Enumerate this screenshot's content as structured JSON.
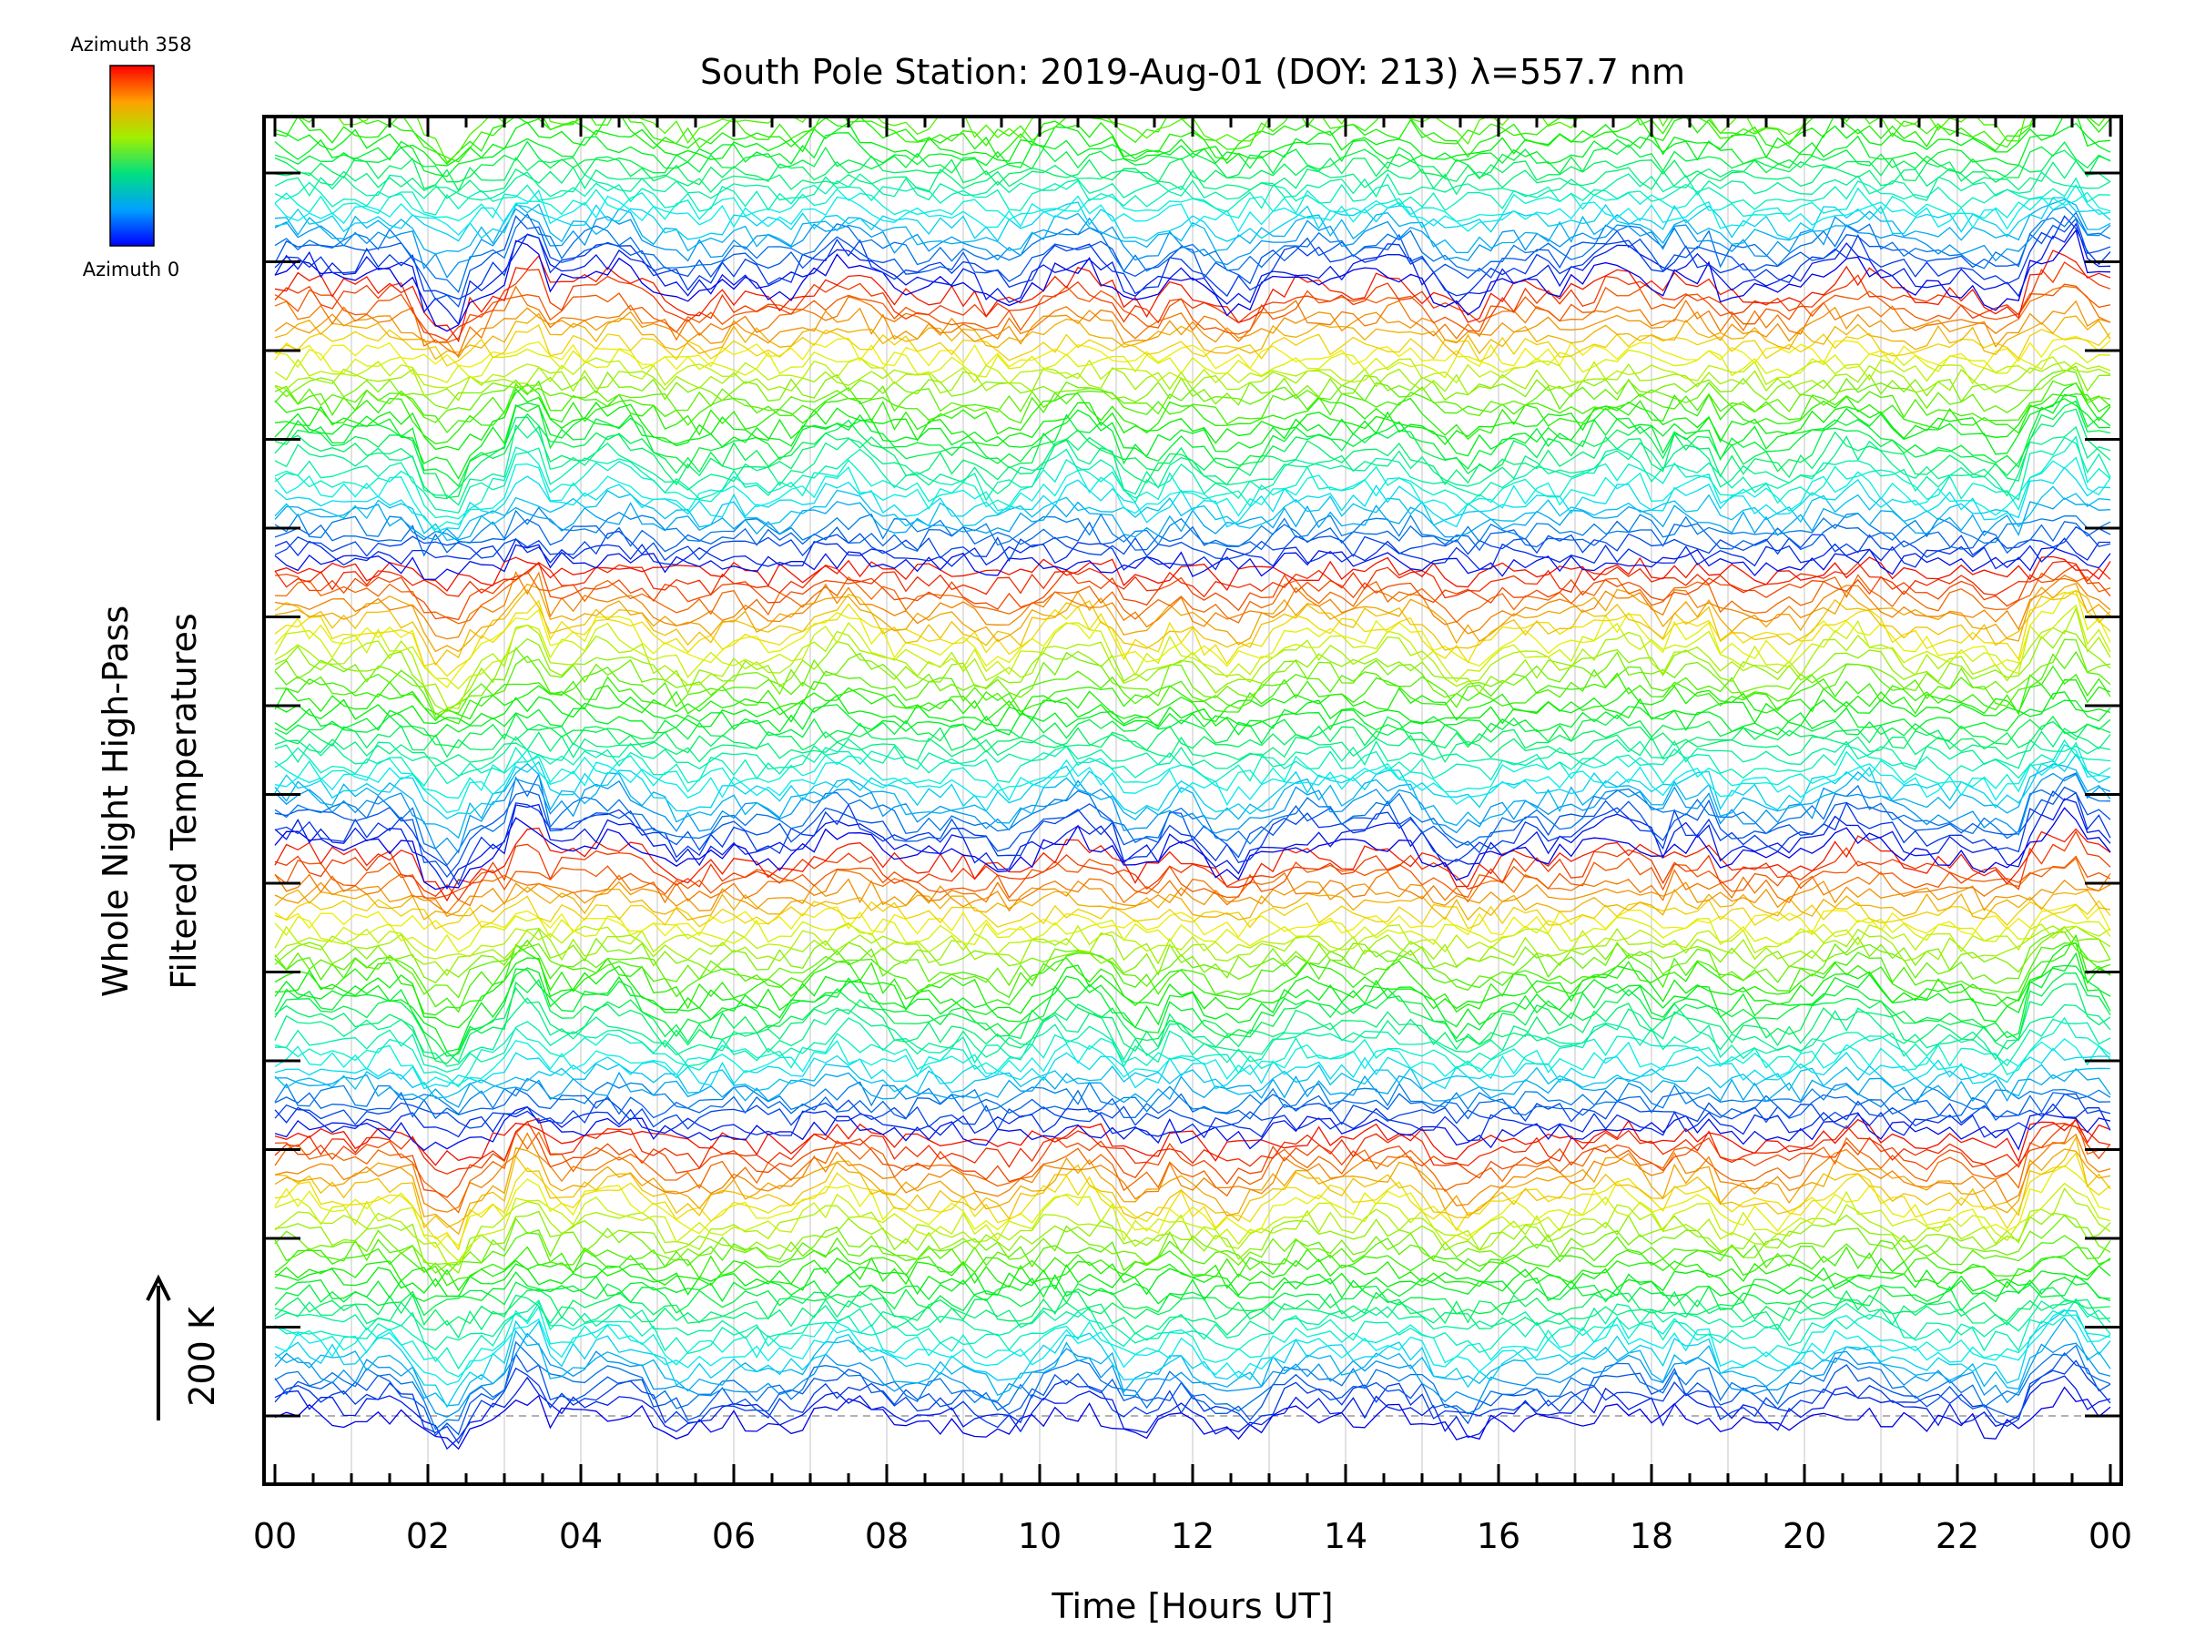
{
  "chart_data": {
    "type": "line",
    "title": "South Pole Station: 2019-Aug-01 (DOY: 213) λ=557.7 nm",
    "xlabel": "Time [Hours UT]",
    "ylabel_line1": "Whole Night High-Pass",
    "ylabel_line2": "Filtered Temperatures",
    "scale_label": "200 K",
    "xlim": [
      0,
      24
    ],
    "x_tick_labels": [
      "00",
      "02",
      "04",
      "06",
      "08",
      "10",
      "12",
      "14",
      "16",
      "18",
      "20",
      "22",
      "00"
    ],
    "grid": true,
    "colorbar": {
      "top_label": "Azimuth 358",
      "bottom_label": "Azimuth 0",
      "min": 0,
      "max": 358,
      "colormap": "rainbow"
    },
    "stacked_traces": 150,
    "colors": {
      "low": "#0000ff",
      "mid": "#a0ff00",
      "high": "#ff0000"
    }
  }
}
